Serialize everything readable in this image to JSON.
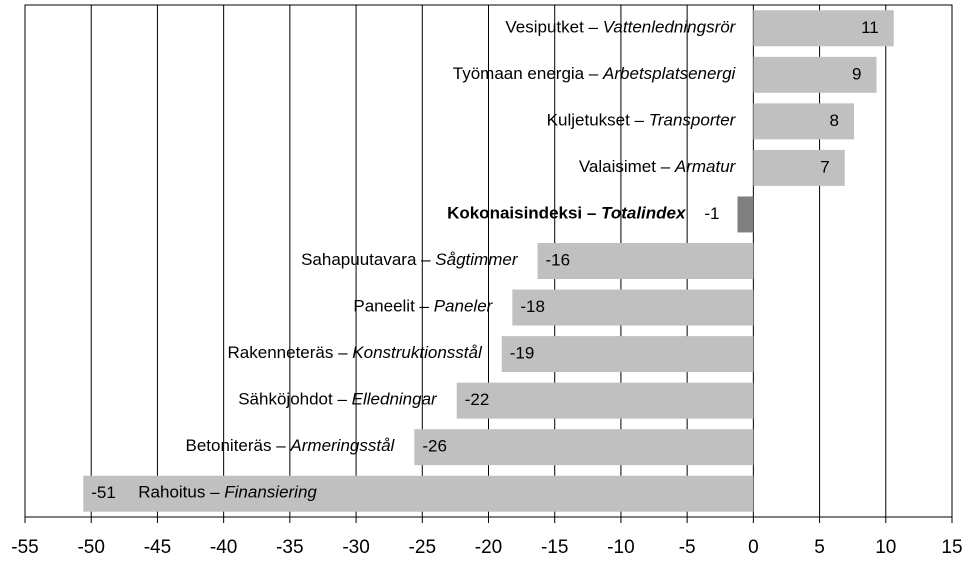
{
  "chart_data": {
    "type": "hbar",
    "categories": [
      "Vesiputket – Vattenledningsrör",
      "Työmaan energia – Arbetsplatsenergi",
      "Kuljetukset – Transporter",
      "Valaisimet – Armatur",
      "Kokonaisindeksi – Totalindex",
      "Sahapuutavara – Sågtimmer",
      "Paneelit – Paneler",
      "Rakenneteräs – Konstruktionsstål",
      "Sähköjohdot – Elledningar",
      "Betoniteräs – Armeringsstål",
      "Rahoitus – Finansiering"
    ],
    "values": [
      10.6,
      9.3,
      7.6,
      6.9,
      -1.2,
      -16.3,
      -18.2,
      -19.0,
      -22.4,
      -25.6,
      -50.6
    ],
    "value_labels": [
      "11",
      "9",
      "8",
      "7",
      "-1",
      "-16",
      "-18",
      "-19",
      "-22",
      "-26",
      "-51"
    ],
    "colors": [
      "#c0c0c0",
      "#c0c0c0",
      "#c0c0c0",
      "#c0c0c0",
      "#808080",
      "#c0c0c0",
      "#c0c0c0",
      "#c0c0c0",
      "#c0c0c0",
      "#c0c0c0",
      "#c0c0c0"
    ],
    "bold": [
      false,
      false,
      false,
      false,
      true,
      false,
      false,
      false,
      false,
      false,
      false
    ],
    "xlim": [
      -55,
      15
    ],
    "xticks": [
      -55,
      -50,
      -45,
      -40,
      -35,
      -30,
      -25,
      -20,
      -15,
      -10,
      -5,
      0,
      5,
      10,
      15
    ],
    "grid": true
  }
}
